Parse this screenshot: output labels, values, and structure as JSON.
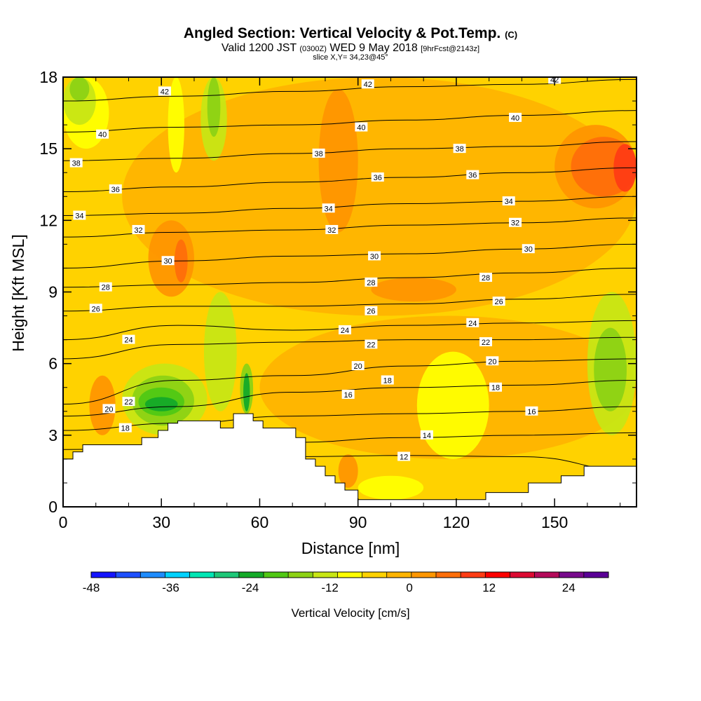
{
  "title": {
    "main": "Angled Section: Vertical Velocity & Pot.Temp.",
    "units": "(C)",
    "valid_pre": "Valid 1200 JST",
    "valid_z": "(0300Z)",
    "valid_mid": "WED 9 May 2018",
    "valid_fcst": "[9hrFcst@2143z]",
    "slice": "slice X,Y= 34,23@45°"
  },
  "colors": {
    "bins": [
      "#1414ff",
      "#1e50ff",
      "#1e8cff",
      "#00d2ff",
      "#00e6b4",
      "#1ec878",
      "#14aa28",
      "#50c814",
      "#8cd214",
      "#c8e614",
      "#ffff00",
      "#ffd200",
      "#ffb400",
      "#ff9600",
      "#ff6e0a",
      "#ff3c14",
      "#ff0000",
      "#dc0a32",
      "#b40a5a",
      "#780a8c",
      "#5a0096"
    ],
    "terrain": "#ffffff"
  },
  "chart_data": {
    "type": "heatmap",
    "xlabel": "Distance [nm]",
    "ylabel": "Height [Kft MSL]",
    "xlim": [
      0,
      175
    ],
    "ylim": [
      0,
      18
    ],
    "xticks": [
      0,
      30,
      60,
      90,
      120,
      150
    ],
    "yticks": [
      0,
      3,
      6,
      9,
      12,
      15,
      18
    ],
    "colorbar": {
      "label": "Vertical Velocity [cm/s]",
      "ticks": [
        -48,
        -36,
        -24,
        -12,
        0,
        12,
        24
      ],
      "min": -48,
      "max": 30,
      "step": 4
    },
    "terrain_profile": [
      [
        0,
        2.0
      ],
      [
        3,
        2.0
      ],
      [
        3,
        2.3
      ],
      [
        6,
        2.3
      ],
      [
        6,
        2.6
      ],
      [
        20,
        2.6
      ],
      [
        24,
        2.6
      ],
      [
        24,
        2.9
      ],
      [
        29,
        2.9
      ],
      [
        29,
        3.2
      ],
      [
        32,
        3.2
      ],
      [
        32,
        3.5
      ],
      [
        35,
        3.5
      ],
      [
        35,
        3.6
      ],
      [
        48,
        3.6
      ],
      [
        48,
        3.3
      ],
      [
        52,
        3.3
      ],
      [
        52,
        3.9
      ],
      [
        58,
        3.9
      ],
      [
        58,
        3.6
      ],
      [
        61,
        3.6
      ],
      [
        61,
        3.3
      ],
      [
        71,
        3.3
      ],
      [
        71,
        2.9
      ],
      [
        74,
        2.9
      ],
      [
        74,
        2.0
      ],
      [
        77,
        2.0
      ],
      [
        77,
        1.7
      ],
      [
        80,
        1.7
      ],
      [
        80,
        1.3
      ],
      [
        83,
        1.3
      ],
      [
        83,
        1.0
      ],
      [
        86,
        1.0
      ],
      [
        86,
        0.7
      ],
      [
        90,
        0.7
      ],
      [
        90,
        0.3
      ],
      [
        129,
        0.3
      ],
      [
        129,
        0.6
      ],
      [
        142,
        0.6
      ],
      [
        142,
        1.0
      ],
      [
        152,
        1.0
      ],
      [
        152,
        1.3
      ],
      [
        159,
        1.3
      ],
      [
        159,
        1.7
      ],
      [
        175,
        1.7
      ]
    ],
    "theta_contours": [
      {
        "value": 12,
        "heights": [
          2.0,
          2.05,
          2.1,
          2.15,
          2.1,
          1.5
        ]
      },
      {
        "value": 14,
        "heights": [
          2.4,
          2.5,
          2.7,
          2.9,
          3.0,
          3.1
        ]
      },
      {
        "value": 16,
        "heights": [
          3.2,
          3.5,
          3.8,
          3.9,
          4.0,
          4.2
        ]
      },
      {
        "value": 18,
        "heights": [
          3.8,
          4.2,
          4.8,
          5.0,
          5.1,
          5.3
        ]
      },
      {
        "value": 20,
        "heights": [
          4.3,
          5.3,
          5.5,
          5.9,
          6.1,
          6.2
        ]
      },
      {
        "value": 22,
        "heights": [
          6.2,
          6.8,
          6.9,
          7.0,
          7.0,
          7.1
        ]
      },
      {
        "value": 24,
        "heights": [
          7.0,
          7.6,
          7.4,
          7.6,
          7.7,
          7.8
        ]
      },
      {
        "value": 26,
        "heights": [
          8.2,
          8.4,
          8.4,
          8.5,
          8.7,
          8.9
        ]
      },
      {
        "value": 28,
        "heights": [
          9.2,
          9.3,
          9.4,
          9.6,
          9.8,
          10.0
        ]
      },
      {
        "value": 30,
        "heights": [
          10.0,
          10.3,
          10.5,
          10.6,
          10.8,
          11.0
        ]
      },
      {
        "value": 32,
        "heights": [
          11.3,
          11.5,
          11.6,
          11.8,
          11.9,
          12.1
        ]
      },
      {
        "value": 34,
        "heights": [
          12.2,
          12.3,
          12.5,
          12.7,
          12.8,
          13.0
        ]
      },
      {
        "value": 36,
        "heights": [
          13.2,
          13.4,
          13.6,
          13.8,
          14.0,
          14.2
        ]
      },
      {
        "value": 38,
        "heights": [
          14.5,
          14.6,
          14.8,
          15.0,
          15.1,
          15.3
        ]
      },
      {
        "value": 40,
        "heights": [
          15.7,
          15.9,
          16.0,
          16.2,
          16.4,
          16.6
        ]
      },
      {
        "value": 42,
        "heights": [
          17.0,
          17.2,
          17.4,
          17.6,
          17.7,
          17.9
        ]
      }
    ],
    "contour_labels": [
      {
        "text": "42",
        "x": 31,
        "y": 17.4
      },
      {
        "text": "42",
        "x": 93,
        "y": 17.7
      },
      {
        "text": "42",
        "x": 150,
        "y": 17.9
      },
      {
        "text": "40",
        "x": 12,
        "y": 15.6
      },
      {
        "text": "40",
        "x": 91,
        "y": 15.9
      },
      {
        "text": "40",
        "x": 138,
        "y": 16.3
      },
      {
        "text": "38",
        "x": 4,
        "y": 14.4
      },
      {
        "text": "38",
        "x": 78,
        "y": 14.8
      },
      {
        "text": "38",
        "x": 121,
        "y": 15.0
      },
      {
        "text": "36",
        "x": 16,
        "y": 13.3
      },
      {
        "text": "36",
        "x": 96,
        "y": 13.8
      },
      {
        "text": "36",
        "x": 125,
        "y": 13.9
      },
      {
        "text": "34",
        "x": 5,
        "y": 12.2
      },
      {
        "text": "34",
        "x": 81,
        "y": 12.5
      },
      {
        "text": "34",
        "x": 136,
        "y": 12.8
      },
      {
        "text": "32",
        "x": 23,
        "y": 11.6
      },
      {
        "text": "32",
        "x": 82,
        "y": 11.6
      },
      {
        "text": "32",
        "x": 138,
        "y": 11.9
      },
      {
        "text": "30",
        "x": 32,
        "y": 10.3
      },
      {
        "text": "30",
        "x": 95,
        "y": 10.5
      },
      {
        "text": "30",
        "x": 142,
        "y": 10.8
      },
      {
        "text": "28",
        "x": 13,
        "y": 9.2
      },
      {
        "text": "28",
        "x": 94,
        "y": 9.4
      },
      {
        "text": "28",
        "x": 129,
        "y": 9.6
      },
      {
        "text": "26",
        "x": 10,
        "y": 8.3
      },
      {
        "text": "26",
        "x": 94,
        "y": 8.2
      },
      {
        "text": "26",
        "x": 133,
        "y": 8.6
      },
      {
        "text": "24",
        "x": 20,
        "y": 7.0
      },
      {
        "text": "24",
        "x": 86,
        "y": 7.4
      },
      {
        "text": "24",
        "x": 125,
        "y": 7.7
      },
      {
        "text": "22",
        "x": 94,
        "y": 6.8
      },
      {
        "text": "22",
        "x": 129,
        "y": 6.9
      },
      {
        "text": "22",
        "x": 20,
        "y": 4.4
      },
      {
        "text": "20",
        "x": 131,
        "y": 6.1
      },
      {
        "text": "20",
        "x": 14,
        "y": 4.1
      },
      {
        "text": "20",
        "x": 90,
        "y": 5.9
      },
      {
        "text": "18",
        "x": 99,
        "y": 5.3
      },
      {
        "text": "18",
        "x": 132,
        "y": 5.0
      },
      {
        "text": "18",
        "x": 19,
        "y": 3.3
      },
      {
        "text": "16",
        "x": 87,
        "y": 4.7
      },
      {
        "text": "16",
        "x": 143,
        "y": 4.0
      },
      {
        "text": "14",
        "x": 111,
        "y": 3.0
      },
      {
        "text": "12",
        "x": 104,
        "y": 2.1
      }
    ],
    "velocity_field": {
      "background_bin": 11,
      "regions": [
        {
          "bin": 12,
          "x": [
            18,
            175
          ],
          "y": [
            8.0,
            18.0
          ]
        },
        {
          "bin": 12,
          "x": [
            60,
            175
          ],
          "y": [
            2.0,
            8.0
          ]
        },
        {
          "bin": 13,
          "x": [
            150,
            175
          ],
          "y": [
            12.5,
            16.0
          ]
        },
        {
          "bin": 14,
          "x": [
            155,
            175
          ],
          "y": [
            13.0,
            15.5
          ]
        },
        {
          "bin": 15,
          "x": [
            168,
            175
          ],
          "y": [
            13.2,
            15.2
          ]
        },
        {
          "bin": 13,
          "x": [
            26,
            40
          ],
          "y": [
            8.8,
            12.0
          ]
        },
        {
          "bin": 14,
          "x": [
            34,
            38
          ],
          "y": [
            9.4,
            11.2
          ]
        },
        {
          "bin": 13,
          "x": [
            8,
            16
          ],
          "y": [
            3.0,
            5.5
          ]
        },
        {
          "bin": 13,
          "x": [
            94,
            120
          ],
          "y": [
            8.6,
            9.6
          ]
        },
        {
          "bin": 13,
          "x": [
            78,
            90
          ],
          "y": [
            11.5,
            17.5
          ]
        },
        {
          "bin": 13,
          "x": [
            84,
            90
          ],
          "y": [
            0.8,
            2.2
          ]
        },
        {
          "bin": 10,
          "x": [
            0,
            14
          ],
          "y": [
            15.0,
            18.0
          ]
        },
        {
          "bin": 9,
          "x": [
            0,
            10
          ],
          "y": [
            16.0,
            18.0
          ]
        },
        {
          "bin": 8,
          "x": [
            2,
            8
          ],
          "y": [
            17.0,
            18.0
          ]
        },
        {
          "bin": 9,
          "x": [
            42,
            50
          ],
          "y": [
            14.5,
            18.0
          ]
        },
        {
          "bin": 8,
          "x": [
            44,
            48
          ],
          "y": [
            15.5,
            18.0
          ]
        },
        {
          "bin": 10,
          "x": [
            32,
            37
          ],
          "y": [
            14.0,
            18.0
          ]
        },
        {
          "bin": 10,
          "x": [
            108,
            130
          ],
          "y": [
            2.0,
            6.5
          ]
        },
        {
          "bin": 10,
          "x": [
            90,
            110
          ],
          "y": [
            0.3,
            1.3
          ]
        },
        {
          "bin": 9,
          "x": [
            160,
            175
          ],
          "y": [
            3.0,
            9.0
          ]
        },
        {
          "bin": 8,
          "x": [
            162,
            172
          ],
          "y": [
            4.0,
            7.5
          ]
        },
        {
          "bin": 9,
          "x": [
            43,
            53
          ],
          "y": [
            4.0,
            9.0
          ]
        },
        {
          "bin": 9,
          "x": [
            18,
            44
          ],
          "y": [
            3.0,
            6.0
          ]
        },
        {
          "bin": 8,
          "x": [
            21,
            40
          ],
          "y": [
            3.4,
            5.5
          ]
        },
        {
          "bin": 7,
          "x": [
            23,
            37
          ],
          "y": [
            3.8,
            5.0
          ]
        },
        {
          "bin": 6,
          "x": [
            25,
            35
          ],
          "y": [
            4.0,
            4.6
          ]
        },
        {
          "bin": 8,
          "x": [
            54,
            58
          ],
          "y": [
            3.9,
            6.0
          ]
        },
        {
          "bin": 6,
          "x": [
            55,
            57
          ],
          "y": [
            4.0,
            5.6
          ]
        }
      ]
    }
  }
}
